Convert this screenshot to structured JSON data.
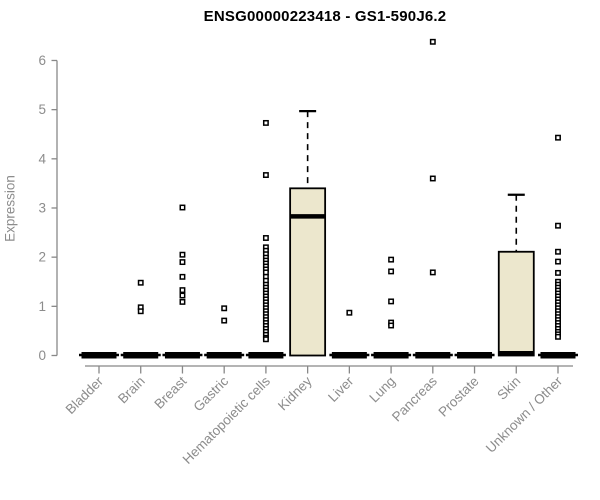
{
  "chart_data": {
    "type": "boxplot",
    "title": "ENSG00000223418 - GS1-590J6.2",
    "ylabel": "Expression",
    "xlabel": "",
    "ylim": [
      0,
      6.5
    ],
    "yticks": [
      0,
      1,
      2,
      3,
      4,
      5,
      6
    ],
    "grid": false,
    "box_fill": "#ece7cd",
    "box_border": "#000000",
    "axis_color": "#888888",
    "tick_label_color": "#8c8c8c",
    "categories": [
      "Bladder",
      "Brain",
      "Breast",
      "Gastric",
      "Hematopoietic cells",
      "Kidney",
      "Liver",
      "Lung",
      "Pancreas",
      "Prostate",
      "Skin",
      "Unknown / Other"
    ],
    "boxes": [
      {
        "category": "Bladder",
        "q1": 0,
        "median": 0,
        "q3": 0,
        "whisker_low": 0,
        "whisker_high": 0,
        "outliers": []
      },
      {
        "category": "Brain",
        "q1": 0,
        "median": 0,
        "q3": 0,
        "whisker_low": 0,
        "whisker_high": 0,
        "outliers": [
          1.48,
          0.98,
          0.9
        ]
      },
      {
        "category": "Breast",
        "q1": 0,
        "median": 0,
        "q3": 0,
        "whisker_low": 0,
        "whisker_high": 0,
        "outliers": [
          3.01,
          2.05,
          1.9,
          1.6,
          1.33,
          1.22,
          1.09
        ]
      },
      {
        "category": "Gastric",
        "q1": 0,
        "median": 0,
        "q3": 0,
        "whisker_low": 0,
        "whisker_high": 0,
        "outliers": [
          0.96,
          0.71
        ]
      },
      {
        "category": "Hematopoietic cells",
        "q1": 0,
        "median": 0,
        "q3": 0,
        "whisker_low": 0,
        "whisker_high": 0,
        "outliers": [
          4.73,
          3.67,
          2.39,
          2.2,
          2.13,
          2.06,
          1.99,
          1.93,
          1.87,
          1.81,
          1.75,
          1.69,
          1.6,
          1.52,
          1.44,
          1.38,
          1.32,
          1.26,
          1.2,
          1.14,
          1.08,
          1.02,
          0.96,
          0.9,
          0.84,
          0.78,
          0.72,
          0.66,
          0.6,
          0.54,
          0.48,
          0.42,
          0.36,
          0.33
        ]
      },
      {
        "category": "Kidney",
        "q1": 0,
        "median": 2.83,
        "q3": 3.4,
        "whisker_low": 0,
        "whisker_high": 4.97,
        "outliers": []
      },
      {
        "category": "Liver",
        "q1": 0,
        "median": 0,
        "q3": 0,
        "whisker_low": 0,
        "whisker_high": 0,
        "outliers": [
          0.87
        ]
      },
      {
        "category": "Lung",
        "q1": 0,
        "median": 0,
        "q3": 0,
        "whisker_low": 0,
        "whisker_high": 0,
        "outliers": [
          1.95,
          1.71,
          1.1,
          0.67,
          0.61
        ]
      },
      {
        "category": "Pancreas",
        "q1": 0,
        "median": 0,
        "q3": 0,
        "whisker_low": 0,
        "whisker_high": 0,
        "outliers": [
          6.38,
          3.6,
          1.69
        ]
      },
      {
        "category": "Prostate",
        "q1": 0,
        "median": 0,
        "q3": 0,
        "whisker_low": 0,
        "whisker_high": 0,
        "outliers": []
      },
      {
        "category": "Skin",
        "q1": 0,
        "median": 0,
        "q3": 2.11,
        "whisker_low": 0,
        "whisker_high": 3.27,
        "outliers": []
      },
      {
        "category": "Unknown / Other",
        "q1": 0,
        "median": 0,
        "q3": 0,
        "whisker_low": 0,
        "whisker_high": 0,
        "outliers": [
          4.43,
          2.64,
          2.11,
          1.91,
          1.68,
          1.5,
          1.44,
          1.38,
          1.32,
          1.26,
          1.2,
          1.14,
          1.08,
          1.02,
          0.96,
          0.9,
          0.84,
          0.78,
          0.72,
          0.66,
          0.6,
          0.54,
          0.48,
          0.43,
          0.38
        ]
      }
    ]
  }
}
